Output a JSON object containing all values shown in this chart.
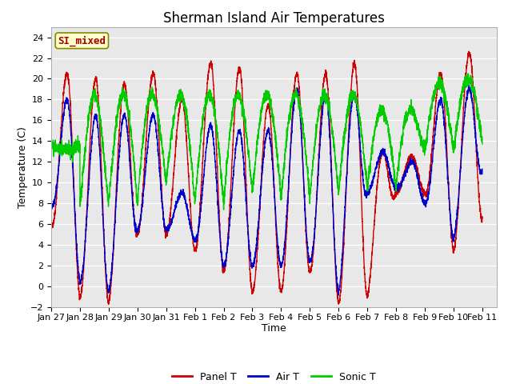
{
  "title": "Sherman Island Air Temperatures",
  "xlabel": "Time",
  "ylabel": "Temperature (C)",
  "ylim": [
    -2,
    25
  ],
  "yticks": [
    -2,
    0,
    2,
    4,
    6,
    8,
    10,
    12,
    14,
    16,
    18,
    20,
    22,
    24
  ],
  "xtick_labels": [
    "Jan 27",
    "Jan 28",
    "Jan 29",
    "Jan 30",
    "Jan 31",
    "Feb 1",
    "Feb 2",
    "Feb 3",
    "Feb 4",
    "Feb 5",
    "Feb 6",
    "Feb 7",
    "Feb 8",
    "Feb 9",
    "Feb 10",
    "Feb 11"
  ],
  "plot_bg_color": "#e8e8e8",
  "fig_bg_color": "#ffffff",
  "label_box_text": "SI_mixed",
  "label_box_facecolor": "#ffffcc",
  "label_box_edgecolor": "#888800",
  "label_box_textcolor": "#aa0000",
  "line_colors": [
    "#cc0000",
    "#0000cc",
    "#00cc00"
  ],
  "line_labels": [
    "Panel T",
    "Air T",
    "Sonic T"
  ],
  "line_width": 1.0,
  "title_fontsize": 12,
  "axis_label_fontsize": 9,
  "tick_fontsize": 8,
  "n_points": 4000,
  "panel_mins": [
    6.0,
    -1.0,
    -1.5,
    5.0,
    5.0,
    3.5,
    1.5,
    -0.5,
    -0.5,
    1.5,
    -1.5,
    -1.0,
    9.0,
    9.0,
    3.5,
    6.5
  ],
  "panel_maxs": [
    20.5,
    20.0,
    19.5,
    20.5,
    18.0,
    21.5,
    21.0,
    17.5,
    20.5,
    20.5,
    21.5,
    13.0,
    12.5,
    20.5,
    22.5,
    11.0
  ],
  "air_mins": [
    8.0,
    0.5,
    -0.5,
    5.5,
    5.5,
    4.5,
    2.0,
    2.0,
    2.0,
    2.5,
    -0.5,
    9.0,
    9.5,
    8.0,
    4.5,
    11.0
  ],
  "air_maxs": [
    18.0,
    16.5,
    16.5,
    16.5,
    9.0,
    15.5,
    15.0,
    15.0,
    19.0,
    18.5,
    18.5,
    13.0,
    12.0,
    18.0,
    19.0,
    11.0
  ],
  "sonic_mins": [
    13.5,
    8.0,
    8.0,
    8.0,
    10.0,
    8.0,
    8.0,
    9.0,
    8.5,
    8.5,
    9.0,
    9.5,
    9.5,
    13.0,
    13.0,
    14.0
  ],
  "sonic_maxs": [
    13.5,
    18.5,
    18.5,
    18.5,
    18.5,
    18.5,
    18.5,
    18.5,
    18.5,
    18.5,
    18.5,
    17.0,
    17.0,
    19.5,
    20.0,
    15.5
  ]
}
